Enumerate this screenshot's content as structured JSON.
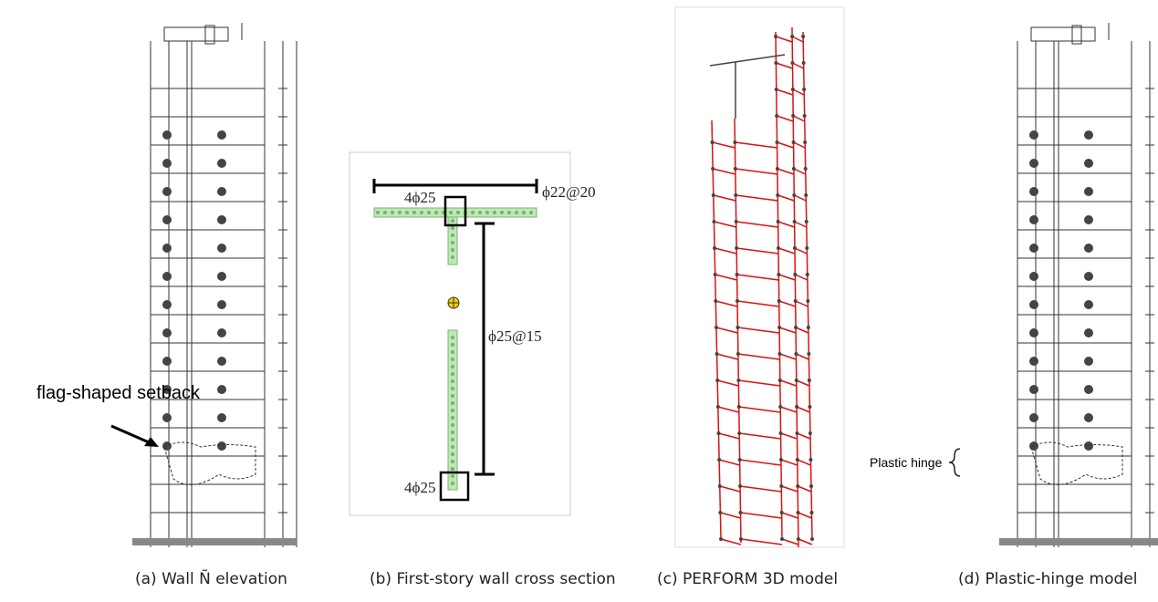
{
  "annotations": {
    "setback": "flag-shaped setback",
    "flange_bars": "4ϕ25",
    "flange_spacing": "ϕ22@20",
    "web_spacing": "ϕ25@15",
    "web_end_bars": "4ϕ25",
    "plastic_hinge": "Plastic hinge"
  },
  "captions": [
    "(a) Wall Ñ elevation",
    "(b) First-story wall cross section",
    "(c) PERFORM 3D model",
    "(d) Plastic-hinge model"
  ]
}
